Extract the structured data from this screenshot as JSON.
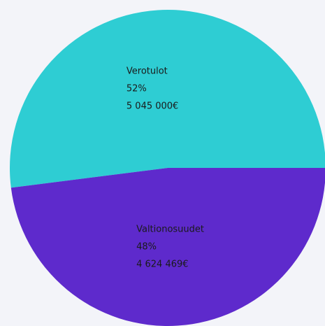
{
  "chart_data": {
    "type": "pie",
    "categories": [
      "Verotulot",
      "Valtionosuudet"
    ],
    "values": [
      52,
      48
    ],
    "value_labels": [
      "52%",
      "48%"
    ],
    "amounts": [
      5045000,
      4624469
    ],
    "amount_labels": [
      "5 045 000€",
      "4 624 469€"
    ],
    "colors": [
      "#2ecdd3",
      "#5e2acc"
    ]
  }
}
